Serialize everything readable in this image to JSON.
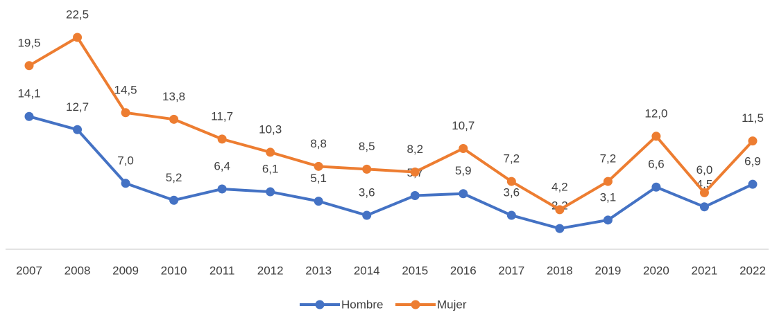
{
  "chart_data": {
    "type": "line",
    "categories": [
      "2007",
      "2008",
      "2009",
      "2010",
      "2011",
      "2012",
      "2013",
      "2014",
      "2015",
      "2016",
      "2017",
      "2018",
      "2019",
      "2020",
      "2021",
      "2022"
    ],
    "series": [
      {
        "name": "Hombre",
        "color": "#4472c4",
        "values": [
          14.1,
          12.7,
          7.0,
          5.2,
          6.4,
          6.1,
          5.1,
          3.6,
          5.7,
          5.9,
          3.6,
          2.2,
          3.1,
          6.6,
          4.5,
          6.9
        ],
        "value_labels": [
          "14,1",
          "12,7",
          "7,0",
          "5,2",
          "6,4",
          "6,1",
          "5,1",
          "3,6",
          "5,7",
          "5,9",
          "3,6",
          "2,2",
          "3,1",
          "6,6",
          "4,5",
          "6,9"
        ]
      },
      {
        "name": "Mujer",
        "color": "#ed7d31",
        "values": [
          19.5,
          22.5,
          14.5,
          13.8,
          11.7,
          10.3,
          8.8,
          8.5,
          8.2,
          10.7,
          7.2,
          4.2,
          7.2,
          12.0,
          6.0,
          11.5
        ],
        "value_labels": [
          "19,5",
          "22,5",
          "14,5",
          "13,8",
          "11,7",
          "10,3",
          "8,8",
          "8,5",
          "8,2",
          "10,7",
          "7,2",
          "4,2",
          "7,2",
          "12,0",
          "6,0",
          "11,5"
        ]
      }
    ],
    "ylim": [
      0,
      25
    ],
    "legend": "bottom"
  }
}
